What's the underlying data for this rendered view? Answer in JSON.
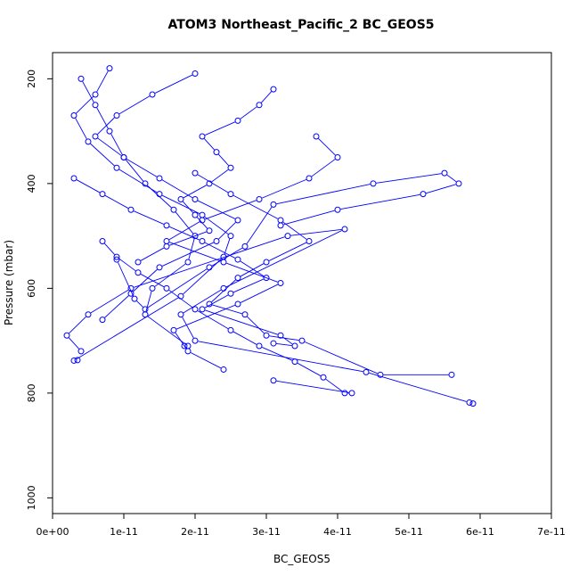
{
  "chart_data": {
    "type": "line",
    "title": "ATOM3 Northeast_Pacific_2 BC_GEOS5",
    "xlabel": "BC_GEOS5",
    "ylabel": "Pressure (mbar)",
    "xlim": [
      0,
      7e-11
    ],
    "ylim": [
      1030,
      150
    ],
    "y_reversed": true,
    "grid": false,
    "x_ticks": [
      {
        "v": 0,
        "label": "0e+00"
      },
      {
        "v": 1e-11,
        "label": "1e-11"
      },
      {
        "v": 2e-11,
        "label": "2e-11"
      },
      {
        "v": 3e-11,
        "label": "3e-11"
      },
      {
        "v": 4e-11,
        "label": "4e-11"
      },
      {
        "v": 5e-11,
        "label": "5e-11"
      },
      {
        "v": 6e-11,
        "label": "6e-11"
      },
      {
        "v": 7e-11,
        "label": "7e-11"
      }
    ],
    "y_ticks": [
      {
        "v": 200,
        "label": "200"
      },
      {
        "v": 400,
        "label": "400"
      },
      {
        "v": 600,
        "label": "600"
      },
      {
        "v": 800,
        "label": "800"
      },
      {
        "v": 1000,
        "label": "1000"
      }
    ],
    "color": "#0000ff",
    "series": [
      {
        "x": [
          5.9e-11,
          5.85e-11,
          4.4e-11,
          2e-11,
          1.8e-11,
          2.4e-11,
          4.1e-11,
          3.3e-11,
          1.1e-11,
          5e-12,
          2e-12,
          4e-12
        ],
        "y": [
          820,
          818,
          760,
          700,
          650,
          600,
          487,
          500,
          600,
          650,
          690,
          720
        ]
      },
      {
        "x": [
          3.5e-12,
          3e-12,
          1.8e-11,
          2.4e-11,
          2.5e-11,
          2.1e-11,
          1.5e-11,
          9e-12,
          5e-12,
          3e-12,
          6e-12,
          8e-12
        ],
        "y": [
          737,
          738,
          615,
          540,
          500,
          460,
          420,
          370,
          320,
          270,
          230,
          180
        ]
      },
      {
        "x": [
          3.1e-11,
          4.2e-11,
          4.1e-11,
          3.8e-11,
          3.4e-11,
          2.9e-11,
          2.5e-11,
          2e-11,
          1.6e-11,
          1.2e-11,
          9e-12,
          7e-12
        ],
        "y": [
          776,
          800,
          800,
          770,
          740,
          710,
          680,
          640,
          600,
          570,
          540,
          510
        ]
      },
      {
        "x": [
          9e-12,
          1.15e-11,
          1.3e-11,
          2.2e-11,
          2.7e-11,
          3.1e-11,
          4.5e-11,
          5.5e-11,
          5.7e-11,
          5.2e-11,
          4e-11,
          3.2e-11
        ],
        "y": [
          545,
          620,
          640,
          560,
          520,
          440,
          400,
          380,
          400,
          420,
          450,
          480
        ]
      },
      {
        "x": [
          1.85e-11,
          1.9e-11,
          1.3e-11,
          1.4e-11,
          1.9e-11,
          2e-11,
          1.7e-11,
          1.3e-11,
          1e-11,
          8e-12,
          6e-12,
          4e-12
        ],
        "y": [
          710,
          710,
          650,
          600,
          550,
          500,
          450,
          400,
          350,
          300,
          250,
          200
        ]
      },
      {
        "x": [
          5.6e-11,
          4.6e-11,
          3.5e-11,
          3e-11,
          2.7e-11,
          2.2e-11,
          2.6e-11,
          3e-11,
          3.6e-11,
          3.2e-11,
          2.5e-11,
          2e-11
        ],
        "y": [
          765,
          765,
          700,
          690,
          650,
          630,
          580,
          550,
          510,
          470,
          420,
          380
        ]
      },
      {
        "x": [
          3.1e-11,
          3.4e-11,
          3.2e-11,
          2.1e-11,
          2.5e-11,
          3e-11,
          2.6e-11,
          2.1e-11,
          1.6e-11,
          1.1e-11,
          7e-12,
          3e-12
        ],
        "y": [
          705,
          710,
          690,
          640,
          610,
          580,
          545,
          510,
          480,
          450,
          420,
          390
        ]
      },
      {
        "x": [
          7e-12,
          1.1e-11,
          1.5e-11,
          2.3e-11,
          2.6e-11,
          2e-11,
          1.5e-11,
          1e-11,
          6e-12,
          9e-12,
          1.4e-11,
          2e-11
        ],
        "y": [
          660,
          610,
          560,
          510,
          470,
          430,
          390,
          350,
          310,
          270,
          230,
          190
        ]
      },
      {
        "x": [
          1.2e-11,
          1.6e-11,
          2.2e-11,
          2e-11,
          1.8e-11,
          2.2e-11,
          2.5e-11,
          2.3e-11,
          2.1e-11,
          2.6e-11,
          2.9e-11,
          3.1e-11
        ],
        "y": [
          550,
          520,
          490,
          460,
          430,
          400,
          370,
          340,
          310,
          280,
          250,
          220
        ]
      },
      {
        "x": [
          2.4e-11,
          1.9e-11,
          1.7e-11,
          2.6e-11,
          3.2e-11,
          2.4e-11,
          1.6e-11,
          2.1e-11,
          2.9e-11,
          3.6e-11,
          4e-11,
          3.7e-11
        ],
        "y": [
          755,
          720,
          680,
          630,
          590,
          550,
          510,
          470,
          430,
          390,
          350,
          310
        ]
      }
    ]
  }
}
